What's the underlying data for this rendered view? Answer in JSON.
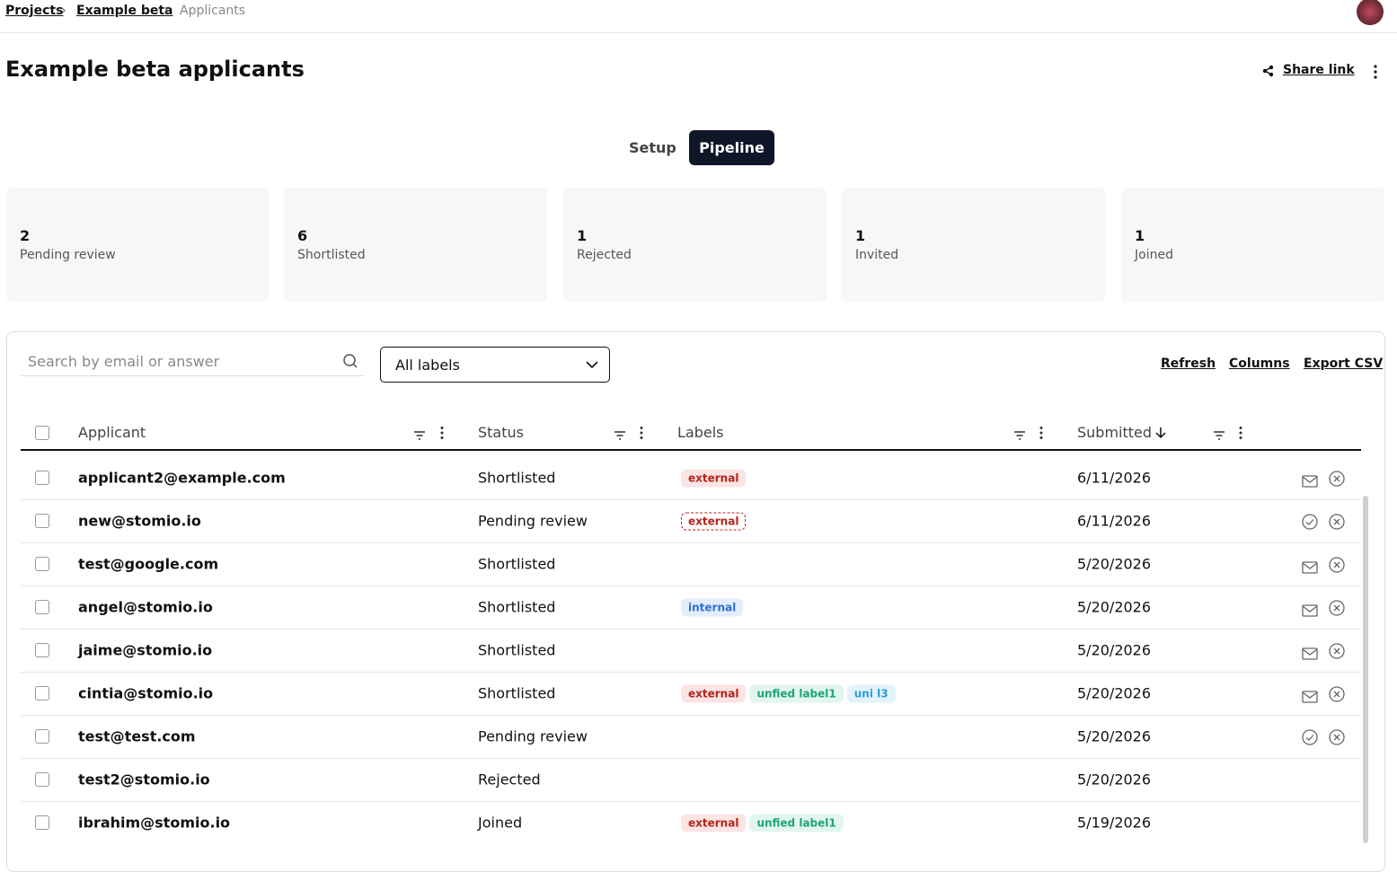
{
  "breadcrumbs": [
    "Projects",
    "Example beta",
    "Applicants"
  ],
  "header": {
    "title": "Example beta applicants",
    "share": "Share link"
  },
  "tabs": [
    "Setup",
    "Pipeline"
  ],
  "stats": [
    {
      "value": 2,
      "label": "Pending review"
    },
    {
      "value": 6,
      "label": "Shortlisted"
    },
    {
      "value": 1,
      "label": "Rejected"
    },
    {
      "value": 1,
      "label": "Invited"
    },
    {
      "value": 1,
      "label": "Joined"
    }
  ],
  "toolbar": {
    "search": "Search by email or answer",
    "filter": "All labels",
    "actions": [
      "Refresh",
      "Columns",
      "Export CSV"
    ]
  },
  "table": {
    "columns": [
      "Applicant",
      "Status",
      "Labels",
      "Submitted"
    ],
    "rows": [
      {
        "email": "applicant2@example.com",
        "status": "Shortlisted",
        "labels": [
          {
            "text": "external",
            "color": "#b42318",
            "bg": "#fbe4e4"
          }
        ],
        "submitted": "6/11/2026"
      },
      {
        "email": "new@stomio.io",
        "status": "Pending review",
        "labels": [
          {
            "text": "external",
            "color": "#b42318",
            "bg": "#fff",
            "border": "dashed"
          }
        ],
        "submitted": "6/11/2026"
      },
      {
        "email": "test@google.com",
        "status": "Shortlisted",
        "labels": [],
        "submitted": "5/20/2026"
      },
      {
        "email": "angel@stomio.io",
        "status": "Shortlisted",
        "labels": [
          {
            "text": "internal",
            "color": "#2f6fd6",
            "bg": "#e3edfb"
          }
        ],
        "submitted": "5/20/2026"
      },
      {
        "email": "jaime@stomio.io",
        "status": "Shortlisted",
        "labels": [],
        "submitted": "5/20/2026"
      },
      {
        "email": "cintia@stomio.io",
        "status": "Shortlisted",
        "labels": [
          {
            "text": "external",
            "color": "#b42318",
            "bg": "#fbe4e4"
          },
          {
            "text": "unfied label1",
            "color": "#1fa37a",
            "bg": "#e2f6ee"
          },
          {
            "text": "uni l3",
            "color": "#2a9fd8",
            "bg": "#e2f3fb"
          }
        ],
        "submitted": "5/20/2026"
      },
      {
        "email": "test@test.com",
        "status": "Pending review",
        "labels": [],
        "submitted": "5/20/2026"
      },
      {
        "email": "test2@stomio.io",
        "status": "Rejected",
        "labels": [],
        "submitted": "5/20/2026"
      },
      {
        "email": "ibrahim@stomio.io",
        "status": "Joined",
        "labels": [
          {
            "text": "external",
            "color": "#b42318",
            "bg": "#fbe4e4"
          },
          {
            "text": "unfied label1",
            "color": "#1fa37a",
            "bg": "#e2f6ee"
          }
        ],
        "submitted": "5/19/2026"
      }
    ]
  }
}
